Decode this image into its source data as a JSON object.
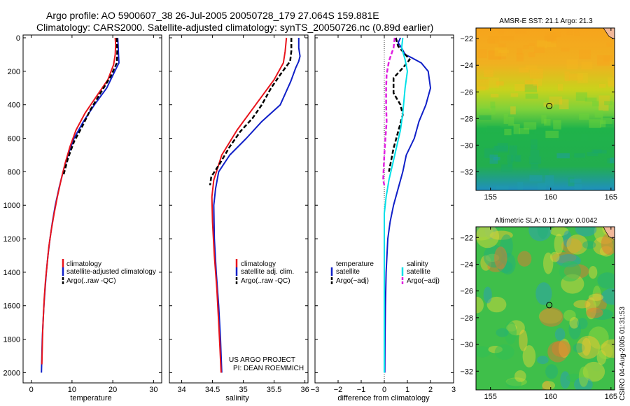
{
  "header": {
    "title_line1": "Argo profile: AO 5900607_38 26-Jul-2005 20050728_179 27.064S 159.881E",
    "title_line2": "Climatology: CARS2000. Satellite-adjusted climatology: synTS_20050726.nc (0.89d earlier)"
  },
  "colors": {
    "climatology": "#e8141c",
    "satellite": "#1020c8",
    "argo": "#000000",
    "salinity": "#00e0e8",
    "salinity_argo": "#e020e0"
  },
  "chart_data": [
    {
      "type": "line",
      "name": "temperature-panel",
      "xlabel": "temperature",
      "xlim": [
        -2,
        32
      ],
      "ylim": [
        2040,
        0
      ],
      "xticks": [
        "0",
        "10",
        "20",
        "30"
      ],
      "xtick_values": [
        0,
        10,
        20,
        30
      ],
      "yticks": [
        "0",
        "200",
        "400",
        "600",
        "800",
        "1000",
        "1200",
        "1400",
        "1600",
        "1800",
        "2000"
      ],
      "ytick_values": [
        0,
        200,
        400,
        600,
        800,
        1000,
        1200,
        1400,
        1600,
        1800,
        2000
      ],
      "legend": [
        "climatology",
        "satellite-adjusted climatology",
        "Argo(..raw -QC)"
      ],
      "series": [
        {
          "name": "satellite-adjusted climatology",
          "color_key": "satellite",
          "dash": "solid",
          "points": [
            [
              21.2,
              0
            ],
            [
              21.3,
              40
            ],
            [
              21.4,
              100
            ],
            [
              21.5,
              150
            ],
            [
              20.5,
              200
            ],
            [
              18.5,
              300
            ],
            [
              15.5,
              400
            ],
            [
              12.8,
              500
            ],
            [
              10.5,
              600
            ],
            [
              9.0,
              700
            ],
            [
              7.8,
              800
            ],
            [
              6.8,
              900
            ],
            [
              5.9,
              1000
            ],
            [
              5.2,
              1100
            ],
            [
              4.6,
              1200
            ],
            [
              4.1,
              1300
            ],
            [
              3.7,
              1400
            ],
            [
              3.4,
              1500
            ],
            [
              3.1,
              1600
            ],
            [
              2.9,
              1700
            ],
            [
              2.7,
              1800
            ],
            [
              2.6,
              1900
            ],
            [
              2.5,
              2000
            ]
          ]
        },
        {
          "name": "climatology",
          "color_key": "climatology",
          "dash": "solid",
          "points": [
            [
              20.6,
              0
            ],
            [
              20.7,
              40
            ],
            [
              20.6,
              100
            ],
            [
              20.2,
              160
            ],
            [
              18.8,
              250
            ],
            [
              16.0,
              350
            ],
            [
              13.2,
              450
            ],
            [
              11.0,
              550
            ],
            [
              9.5,
              650
            ],
            [
              8.3,
              750
            ],
            [
              7.3,
              850
            ],
            [
              6.4,
              950
            ],
            [
              5.6,
              1050
            ],
            [
              4.9,
              1150
            ],
            [
              4.3,
              1250
            ],
            [
              3.9,
              1350
            ],
            [
              3.5,
              1450
            ],
            [
              3.2,
              1550
            ],
            [
              3.0,
              1650
            ],
            [
              2.8,
              1750
            ],
            [
              2.7,
              1850
            ],
            [
              2.6,
              1950
            ]
          ]
        },
        {
          "name": "Argo(..raw -QC)",
          "color_key": "argo",
          "dash": "dash",
          "points": [
            [
              21.0,
              0
            ],
            [
              21.1,
              80
            ],
            [
              21.0,
              150
            ],
            [
              19.5,
              230
            ],
            [
              17.0,
              330
            ],
            [
              14.5,
              430
            ],
            [
              12.5,
              530
            ],
            [
              10.5,
              620
            ],
            [
              9.0,
              720
            ],
            [
              7.9,
              820
            ]
          ]
        }
      ]
    },
    {
      "type": "line",
      "name": "salinity-panel",
      "xlabel": "salinity",
      "xlim": [
        33.8,
        36.05
      ],
      "ylim": [
        2040,
        0
      ],
      "xticks": [
        "34",
        "34.5",
        "35",
        "35.5",
        "36"
      ],
      "xtick_values": [
        34,
        34.5,
        35,
        35.5,
        36
      ],
      "legend": [
        "climatology",
        "satellite adj. clim.",
        "Argo(..raw -QC)"
      ],
      "annotation": [
        "US ARGO PROJECT",
        "PI: DEAN ROEMMICH"
      ],
      "series": [
        {
          "name": "satellite adj. clim.",
          "color_key": "satellite",
          "dash": "solid",
          "points": [
            [
              35.9,
              0
            ],
            [
              35.9,
              60
            ],
            [
              35.92,
              110
            ],
            [
              35.9,
              140
            ],
            [
              35.85,
              180
            ],
            [
              35.77,
              260
            ],
            [
              35.6,
              400
            ],
            [
              35.3,
              500
            ],
            [
              35.05,
              600
            ],
            [
              34.78,
              700
            ],
            [
              34.6,
              800
            ],
            [
              34.55,
              900
            ],
            [
              34.52,
              1000
            ],
            [
              34.53,
              1200
            ],
            [
              34.56,
              1400
            ],
            [
              34.6,
              1600
            ],
            [
              34.63,
              1800
            ],
            [
              34.65,
              2000
            ]
          ]
        },
        {
          "name": "climatology",
          "color_key": "climatology",
          "dash": "solid",
          "points": [
            [
              35.7,
              0
            ],
            [
              35.68,
              80
            ],
            [
              35.65,
              150
            ],
            [
              35.5,
              250
            ],
            [
              35.2,
              400
            ],
            [
              34.9,
              550
            ],
            [
              34.65,
              700
            ],
            [
              34.52,
              850
            ],
            [
              34.49,
              950
            ],
            [
              34.5,
              1100
            ],
            [
              34.53,
              1300
            ],
            [
              34.57,
              1500
            ],
            [
              34.6,
              1700
            ],
            [
              34.62,
              1850
            ],
            [
              34.64,
              2000
            ]
          ]
        },
        {
          "name": "Argo(..raw -QC)",
          "color_key": "argo",
          "dash": "dash",
          "points": [
            [
              35.78,
              0
            ],
            [
              35.78,
              80
            ],
            [
              35.76,
              140
            ],
            [
              35.6,
              220
            ],
            [
              35.45,
              300
            ],
            [
              35.3,
              400
            ],
            [
              35.15,
              480
            ],
            [
              34.95,
              560
            ],
            [
              34.78,
              650
            ],
            [
              34.62,
              750
            ],
            [
              34.48,
              830
            ],
            [
              34.46,
              880
            ]
          ]
        }
      ]
    },
    {
      "type": "line",
      "name": "difference-panel",
      "xlabel": "difference from climatology",
      "xlim": [
        -3,
        3
      ],
      "ylim": [
        2040,
        0
      ],
      "xticks": [
        "−3",
        "−2",
        "−1",
        "0",
        "1",
        "2",
        "3"
      ],
      "xtick_values": [
        -3,
        -2,
        -1,
        0,
        1,
        2,
        3
      ],
      "legend_left_title": "temperature",
      "legend_right_title": "salinity",
      "legend": [
        "satellite",
        "Argo(−adj)",
        "satellite",
        "Argo(−adj)"
      ],
      "series": [
        {
          "name": "temperature satellite",
          "color_key": "satellite",
          "dash": "solid",
          "points": [
            [
              0.7,
              0
            ],
            [
              0.6,
              30
            ],
            [
              0.75,
              60
            ],
            [
              0.9,
              100
            ],
            [
              1.2,
              120
            ],
            [
              1.6,
              150
            ],
            [
              1.9,
              200
            ],
            [
              2.0,
              300
            ],
            [
              1.8,
              400
            ],
            [
              1.5,
              500
            ],
            [
              1.3,
              600
            ],
            [
              0.95,
              700
            ],
            [
              0.8,
              800
            ],
            [
              0.6,
              900
            ],
            [
              0.4,
              1000
            ],
            [
              0.25,
              1100
            ],
            [
              0.15,
              1200
            ],
            [
              0.08,
              1400
            ],
            [
              0.05,
              1600
            ],
            [
              0.03,
              1800
            ],
            [
              0.02,
              2000
            ]
          ]
        },
        {
          "name": "temperature Argo(-adj)",
          "color_key": "argo",
          "dash": "dash",
          "points": [
            [
              0.5,
              0
            ],
            [
              0.6,
              50
            ],
            [
              1.1,
              130
            ],
            [
              0.8,
              180
            ],
            [
              0.4,
              240
            ],
            [
              0.4,
              330
            ],
            [
              0.7,
              400
            ],
            [
              0.8,
              460
            ],
            [
              0.6,
              560
            ],
            [
              0.4,
              660
            ],
            [
              0.2,
              800
            ]
          ]
        },
        {
          "name": "salinity satellite",
          "color_key": "salinity",
          "dash": "solid",
          "points": [
            [
              0.8,
              0
            ],
            [
              0.75,
              60
            ],
            [
              0.9,
              130
            ],
            [
              1.0,
              200
            ],
            [
              0.9,
              300
            ],
            [
              0.8,
              450
            ],
            [
              0.7,
              550
            ],
            [
              0.45,
              700
            ],
            [
              0.2,
              850
            ],
            [
              0.08,
              950
            ],
            [
              0.0,
              1050
            ],
            [
              0.0,
              1500
            ],
            [
              0.0,
              2000
            ]
          ]
        },
        {
          "name": "salinity Argo(-adj)",
          "color_key": "salinity_argo",
          "dash": "dash",
          "points": [
            [
              0.45,
              0
            ],
            [
              0.4,
              60
            ],
            [
              0.2,
              140
            ],
            [
              0.1,
              220
            ],
            [
              0.08,
              300
            ],
            [
              0.08,
              400
            ],
            [
              0.1,
              500
            ],
            [
              0.05,
              600
            ],
            [
              0.0,
              700
            ],
            [
              -0.05,
              850
            ],
            [
              0.0,
              880
            ]
          ]
        }
      ]
    },
    {
      "type": "heatmap",
      "name": "sst-map",
      "title": "AMSR-E SST: 21.1 Argo: 21.3",
      "xlim": [
        153.8,
        165.3
      ],
      "ylim": [
        -33.4,
        -21.2
      ],
      "xticks": [
        "155",
        "160",
        "165"
      ],
      "xtick_values": [
        155,
        160,
        165
      ],
      "yticks": [
        "−22",
        "−24",
        "−26",
        "−28",
        "−30",
        "−32"
      ],
      "ytick_values": [
        -22,
        -24,
        -26,
        -28,
        -30,
        -32
      ],
      "argo_position": [
        159.88,
        -27.06
      ]
    },
    {
      "type": "heatmap",
      "name": "sla-map",
      "title": "Altimetric SLA: 0.11 Argo: 0.0042",
      "xlim": [
        153.8,
        165.3
      ],
      "ylim": [
        -33.4,
        -21.2
      ],
      "xticks": [
        "155",
        "160",
        "165"
      ],
      "xtick_values": [
        155,
        160,
        165
      ],
      "yticks": [
        "−22",
        "−24",
        "−26",
        "−28",
        "−30",
        "−32"
      ],
      "ytick_values": [
        -22,
        -24,
        -26,
        -28,
        -30,
        -32
      ],
      "argo_position": [
        159.88,
        -27.06
      ]
    }
  ],
  "footer": {
    "stamp": "CSIRO 04-Aug-2005 01:31:53"
  }
}
